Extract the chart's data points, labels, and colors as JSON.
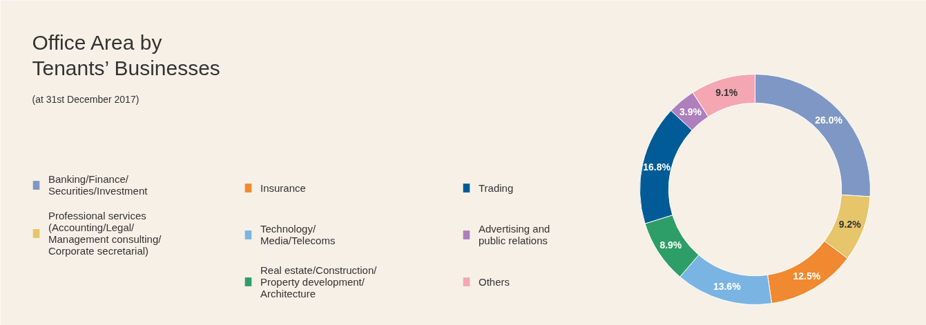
{
  "chart_data": {
    "type": "donut",
    "title": "Office Area by\nTenants’ Businesses",
    "subtitle": "(at 31st December 2017)",
    "categories": [
      "Banking/Finance/\nSecurities/Investment",
      "Professional services\n(Accounting/Legal/\nManagement consulting/\nCorporate secretarial)",
      "Insurance",
      "Technology/\nMedia/Telecoms",
      "Real estate/Construction/\nProperty development/\nArchitecture",
      "Trading",
      "Advertising and\npublic relations",
      "Others"
    ],
    "values": [
      26.0,
      9.2,
      12.5,
      13.6,
      8.9,
      16.8,
      3.9,
      9.1
    ],
    "colors": [
      "#7f97c4",
      "#e6c56b",
      "#f0892f",
      "#7ab4e3",
      "#2e9e68",
      "#005b96",
      "#ad7fbd",
      "#f4a7b3"
    ],
    "value_labels": [
      "26.0%",
      "9.2%",
      "12.5%",
      "13.6%",
      "8.9%",
      "16.8%",
      "3.9%",
      "9.1%"
    ],
    "legend": "left"
  }
}
